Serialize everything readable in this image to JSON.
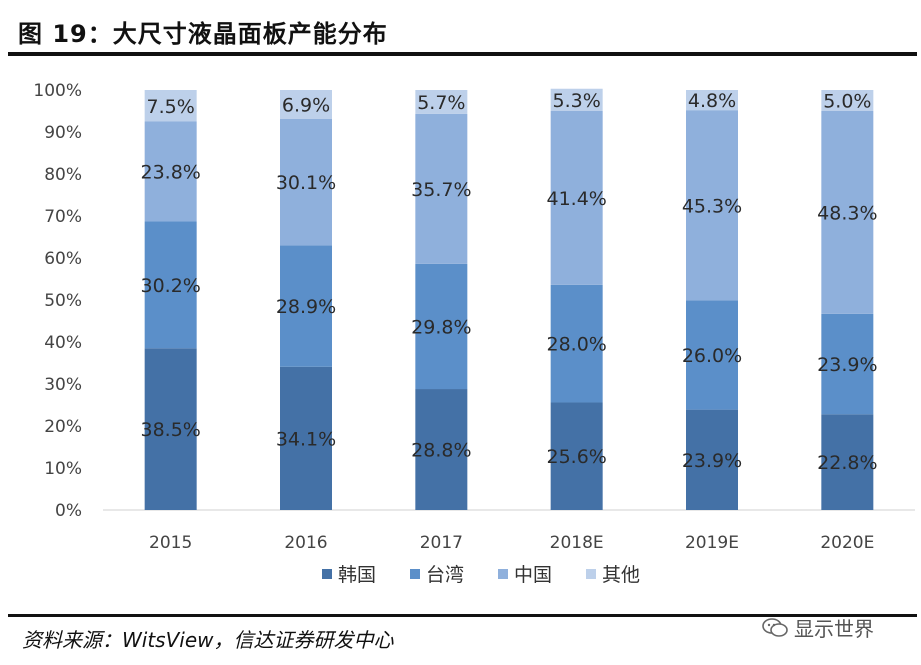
{
  "figure": {
    "title": "图 19：大尺寸液晶面板产能分布",
    "source": "资料来源：WitsView，信达证券研发中心",
    "watermark": "显示世界",
    "watermark_icon": "wechat-icon"
  },
  "chart_data": {
    "type": "bar",
    "stacked": true,
    "title": "",
    "xlabel": "",
    "ylabel": "",
    "ylim": [
      0,
      100
    ],
    "y_ticks": [
      "0%",
      "10%",
      "20%",
      "30%",
      "40%",
      "50%",
      "60%",
      "70%",
      "80%",
      "90%",
      "100%"
    ],
    "categories": [
      "2015",
      "2016",
      "2017",
      "2018E",
      "2019E",
      "2020E"
    ],
    "legend_position": "bottom",
    "grid": false,
    "series": [
      {
        "name": "韩国",
        "color": "#4471a6",
        "values": [
          38.5,
          34.1,
          28.8,
          25.6,
          23.9,
          22.8
        ],
        "labels": [
          "38.5%",
          "34.1%",
          "28.8%",
          "25.6%",
          "23.9%",
          "22.8%"
        ]
      },
      {
        "name": "台湾",
        "color": "#5b8fc9",
        "values": [
          30.2,
          28.9,
          29.8,
          28.0,
          26.0,
          23.9
        ],
        "labels": [
          "30.2%",
          "28.9%",
          "29.8%",
          "28.0%",
          "26.0%",
          "23.9%"
        ]
      },
      {
        "name": "中国",
        "color": "#8fb0dc",
        "values": [
          23.8,
          30.1,
          35.7,
          41.4,
          45.3,
          48.3
        ],
        "labels": [
          "23.8%",
          "30.1%",
          "35.7%",
          "41.4%",
          "45.3%",
          "48.3%"
        ]
      },
      {
        "name": "其他",
        "color": "#bdd0ea",
        "values": [
          7.5,
          6.9,
          5.7,
          5.3,
          4.8,
          5.0
        ],
        "labels": [
          "7.5%",
          "6.9%",
          "5.7%",
          "5.3%",
          "4.8%",
          "5.0%"
        ]
      }
    ]
  }
}
